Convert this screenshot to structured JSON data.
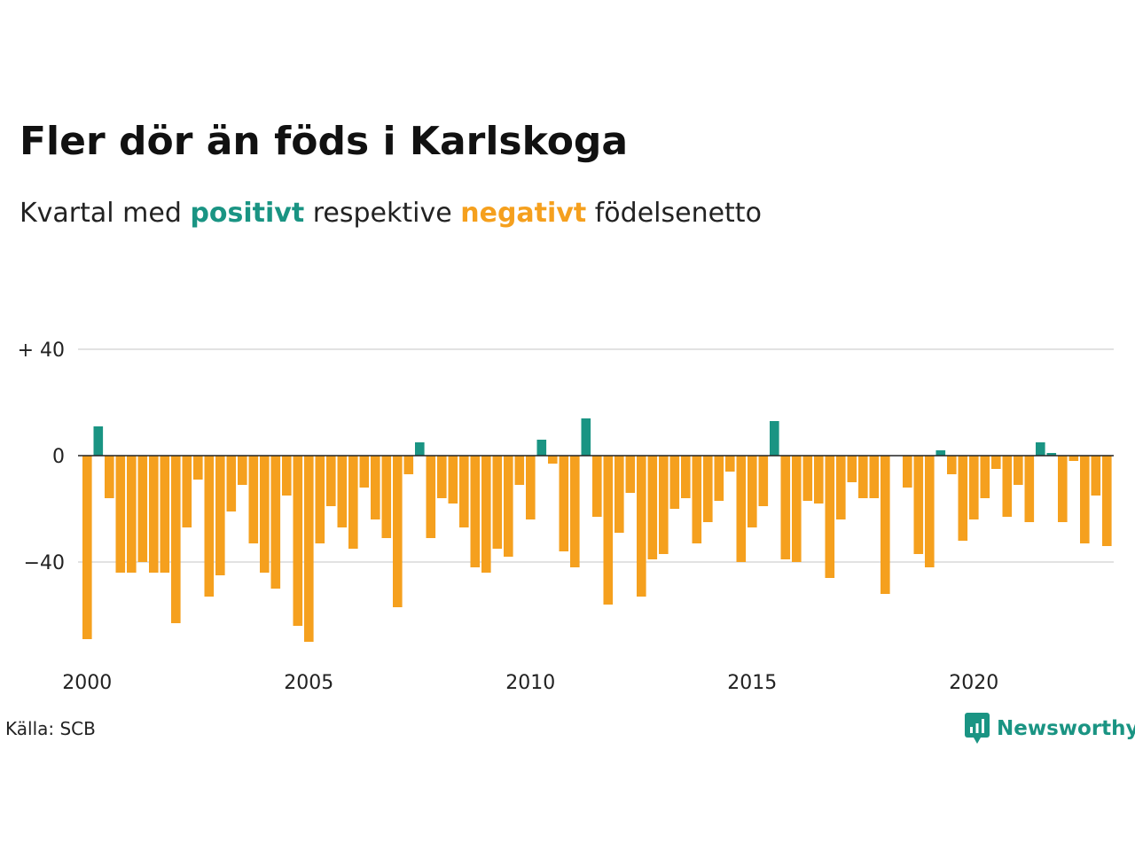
{
  "title": "Fler dör än föds i Karlskoga",
  "subtitle": {
    "prefix": "Kvartal med",
    "positive": "positivt",
    "middle": "respektive",
    "negative": "negativt",
    "suffix": "födelsenetto"
  },
  "colors": {
    "positive": "#1a9483",
    "negative": "#f5a01e",
    "grid": "#e2e2e2",
    "baseline": "#222222"
  },
  "source": "Källa: SCB",
  "logo": {
    "text": "Newsworthy",
    "icon": "newsworthy-logo-icon"
  },
  "chart_data": {
    "type": "bar",
    "x_start": "2000 Q1",
    "x_step": "quarter",
    "x_ticks": [
      "2000",
      "2005",
      "2010",
      "2015",
      "2020"
    ],
    "y_ticks": [
      {
        "value": 40,
        "label": "+ 40"
      },
      {
        "value": 0,
        "label": "0"
      },
      {
        "value": -40,
        "label": "−40"
      }
    ],
    "ylim": [
      -72,
      40
    ],
    "grid": "horizontal",
    "values": [
      -69,
      11,
      -16,
      -44,
      -44,
      -40,
      -44,
      -44,
      -63,
      -27,
      -9,
      -53,
      -45,
      -21,
      -11,
      -33,
      -44,
      -50,
      -15,
      -64,
      -70,
      -33,
      -19,
      -27,
      -35,
      -12,
      -24,
      -31,
      -57,
      -7,
      5,
      -31,
      -16,
      -18,
      -27,
      -42,
      -44,
      -35,
      -38,
      -11,
      -24,
      6,
      -3,
      -36,
      -42,
      14,
      -23,
      -56,
      -29,
      -14,
      -53,
      -39,
      -37,
      -20,
      -16,
      -33,
      -25,
      -17,
      -6,
      -40,
      -27,
      -19,
      13,
      -39,
      -40,
      -17,
      -18,
      -46,
      -24,
      -10,
      -16,
      -16,
      -52,
      0,
      -12,
      -37,
      -42,
      2,
      -7,
      -32,
      -24,
      -16,
      -5,
      -23,
      -11,
      -25,
      5,
      1,
      -25,
      -2,
      -33,
      -15,
      -34
    ]
  }
}
